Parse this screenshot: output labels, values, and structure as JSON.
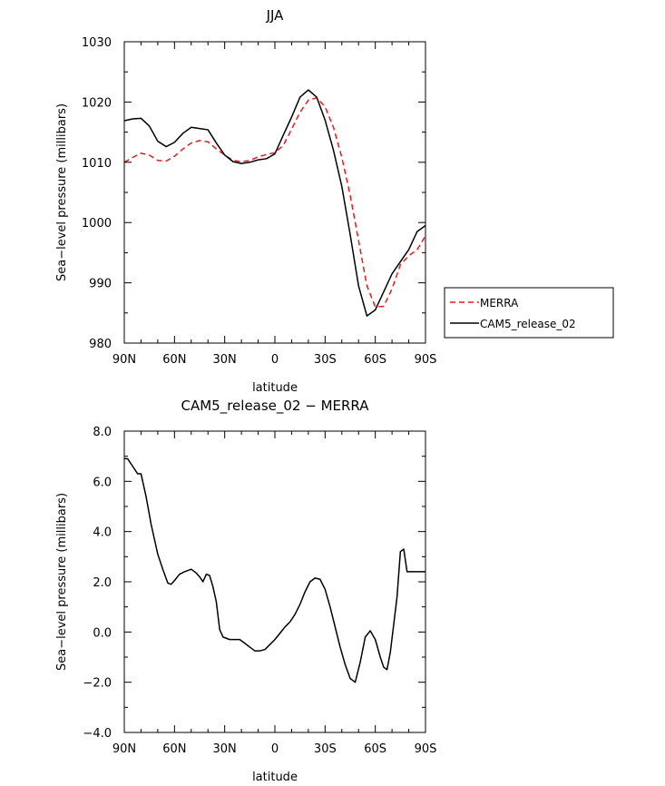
{
  "colors": {
    "merra": "#e8191e",
    "cam5": "#000000"
  },
  "chart_data": [
    {
      "type": "line",
      "title": "JJA",
      "xlabel": "latitude",
      "ylabel": "Sea−level pressure (millibars)",
      "xlim": [
        90,
        -90
      ],
      "ylim": [
        980,
        1030
      ],
      "x_ticks": [
        90,
        60,
        30,
        0,
        -30,
        -60,
        -90
      ],
      "x_tick_labels": [
        "90N",
        "60N",
        "30N",
        "0",
        "30S",
        "60S",
        "90S"
      ],
      "y_ticks": [
        980,
        990,
        1000,
        1010,
        1020,
        1030
      ],
      "y_tick_labels": [
        "980",
        "990",
        "1000",
        "1010",
        "1020",
        "1030"
      ],
      "legend_position": "right",
      "series": [
        {
          "name": "MERRA",
          "style": "dashed",
          "x": [
            90,
            85,
            80,
            75,
            70,
            65,
            60,
            55,
            50,
            45,
            40,
            35,
            30,
            25,
            20,
            15,
            10,
            5,
            0,
            -5,
            -10,
            -15,
            -20,
            -25,
            -30,
            -35,
            -40,
            -45,
            -50,
            -55,
            -60,
            -65,
            -70,
            -75,
            -80,
            -85,
            -90
          ],
          "y": [
            1010.0,
            1010.8,
            1011.5,
            1011.2,
            1010.3,
            1010.2,
            1011.0,
            1012.2,
            1013.2,
            1013.6,
            1013.4,
            1012.2,
            1011.2,
            1010.3,
            1010.1,
            1010.3,
            1010.9,
            1011.3,
            1011.6,
            1012.8,
            1015.5,
            1018.3,
            1020.3,
            1020.7,
            1019.2,
            1015.8,
            1010.8,
            1004.5,
            997.0,
            989.5,
            986.0,
            986.1,
            989.0,
            993.0,
            994.5,
            995.5,
            997.8
          ]
        },
        {
          "name": "CAM5_release_02",
          "style": "solid",
          "x": [
            90,
            85,
            80,
            75,
            70,
            65,
            60,
            55,
            50,
            45,
            40,
            35,
            30,
            25,
            20,
            15,
            10,
            5,
            0,
            -5,
            -10,
            -15,
            -20,
            -25,
            -30,
            -35,
            -40,
            -45,
            -50,
            -55,
            -60,
            -65,
            -70,
            -75,
            -80,
            -85,
            -90
          ],
          "y": [
            1016.9,
            1017.2,
            1017.3,
            1016.0,
            1013.5,
            1012.6,
            1013.3,
            1014.8,
            1015.8,
            1015.6,
            1015.4,
            1013.2,
            1011.2,
            1010.1,
            1009.8,
            1010.0,
            1010.4,
            1010.6,
            1011.4,
            1014.5,
            1017.5,
            1020.8,
            1022.0,
            1020.8,
            1017.0,
            1012.0,
            1006.0,
            998.0,
            989.5,
            984.5,
            985.5,
            988.5,
            991.5,
            993.5,
            995.5,
            998.5,
            999.5
          ]
        }
      ]
    },
    {
      "type": "line",
      "title": "CAM5_release_02 − MERRA",
      "xlabel": "latitude",
      "ylabel": "Sea−level pressure (millibars)",
      "xlim": [
        90,
        -90
      ],
      "ylim": [
        -4.0,
        8.0
      ],
      "x_ticks": [
        90,
        60,
        30,
        0,
        -30,
        -60,
        -90
      ],
      "x_tick_labels": [
        "90N",
        "60N",
        "30N",
        "0",
        "30S",
        "60S",
        "90S"
      ],
      "y_ticks": [
        -4,
        -2,
        0,
        2,
        4,
        6,
        8
      ],
      "y_tick_labels": [
        "−4.0",
        "−2.0",
        "0.0",
        "2.0",
        "4.0",
        "6.0",
        "8.0"
      ],
      "series": [
        {
          "name": "",
          "style": "solid",
          "x": [
            90,
            88,
            85,
            82,
            80,
            77,
            74,
            70,
            67,
            64,
            62,
            60,
            57,
            54,
            50,
            47,
            45,
            43,
            41,
            39,
            37,
            35,
            33,
            31,
            29,
            27,
            24,
            21,
            18,
            15,
            12,
            9,
            6,
            3,
            0,
            -3,
            -6,
            -9,
            -12,
            -15,
            -18,
            -21,
            -24,
            -27,
            -30,
            -33,
            -36,
            -39,
            -42,
            -45,
            -48,
            -51,
            -54,
            -57,
            -60,
            -63,
            -65,
            -67,
            -69,
            -71,
            -73,
            -75,
            -77,
            -79,
            -81,
            -83,
            -85,
            -87,
            -89,
            -90
          ],
          "y": [
            6.9,
            6.9,
            6.6,
            6.3,
            6.3,
            5.4,
            4.3,
            3.1,
            2.5,
            1.95,
            1.9,
            2.05,
            2.3,
            2.4,
            2.5,
            2.35,
            2.2,
            2.0,
            2.3,
            2.25,
            1.8,
            1.2,
            0.1,
            -0.2,
            -0.25,
            -0.3,
            -0.3,
            -0.3,
            -0.45,
            -0.6,
            -0.75,
            -0.75,
            -0.7,
            -0.5,
            -0.3,
            -0.05,
            0.2,
            0.4,
            0.7,
            1.1,
            1.6,
            2.0,
            2.15,
            2.1,
            1.7,
            1.0,
            0.2,
            -0.6,
            -1.3,
            -1.85,
            -2.0,
            -1.2,
            -0.2,
            0.05,
            -0.3,
            -1.0,
            -1.4,
            -1.5,
            -0.8,
            0.3,
            1.4,
            3.2,
            3.3,
            2.4,
            2.4,
            2.4,
            2.4,
            2.4,
            2.4,
            2.4
          ]
        }
      ]
    }
  ]
}
